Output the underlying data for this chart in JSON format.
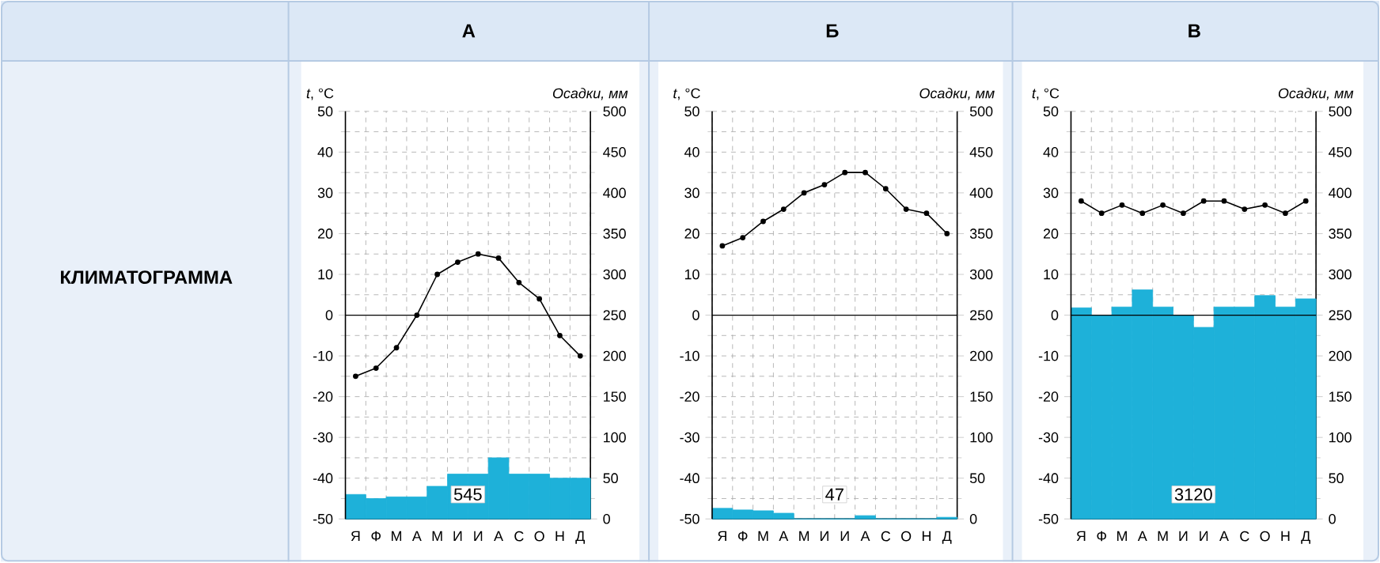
{
  "chart_data": [
    {
      "type": "other",
      "title": "КЛИМАТОГРАММА"
    },
    {
      "type": "bar",
      "title": "А",
      "categories": [
        "Я",
        "Ф",
        "М",
        "А",
        "М",
        "И",
        "И",
        "А",
        "С",
        "О",
        "Н",
        "Д"
      ],
      "ylabel": "*t*, °C",
      "y2label": "Осадки, мм",
      "ylim": [
        -50,
        50
      ],
      "yticks": [
        -50,
        -40,
        -30,
        -20,
        -10,
        0,
        10,
        20,
        30,
        40,
        50
      ],
      "y2lim": [
        0,
        500
      ],
      "y2ticks": [
        0,
        50,
        100,
        150,
        200,
        250,
        300,
        350,
        400,
        450,
        500
      ],
      "grid": true,
      "marker": "circle",
      "ref_lines": [
        {
          "axis": "y",
          "value": 0
        }
      ],
      "annotations": [
        "545"
      ],
      "series": [
        {
          "type": "bar",
          "axis": "y2",
          "color": "#1eb1d9",
          "values": [
            30,
            25,
            27,
            27,
            40,
            55,
            55,
            75,
            55,
            55,
            50,
            50
          ]
        },
        {
          "type": "line",
          "color": "#000000",
          "values": [
            -15,
            -13,
            -8,
            0,
            10,
            13,
            15,
            14,
            8,
            4,
            -5,
            -10
          ]
        }
      ]
    },
    {
      "type": "bar",
      "title": "Б",
      "categories": [
        "Я",
        "Ф",
        "М",
        "А",
        "М",
        "И",
        "И",
        "А",
        "С",
        "О",
        "Н",
        "Д"
      ],
      "ylabel": "*t*, °C",
      "y2label": "Осадки, мм",
      "ylim": [
        -50,
        50
      ],
      "yticks": [
        -50,
        -40,
        -30,
        -20,
        -10,
        0,
        10,
        20,
        30,
        40,
        50
      ],
      "y2lim": [
        0,
        500
      ],
      "y2ticks": [
        0,
        50,
        100,
        150,
        200,
        250,
        300,
        350,
        400,
        450,
        500
      ],
      "grid": true,
      "marker": "circle",
      "ref_lines": [
        {
          "axis": "y",
          "value": 0
        }
      ],
      "annotations": [
        "47"
      ],
      "series": [
        {
          "type": "bar",
          "axis": "y2",
          "color": "#1eb1d9",
          "values": [
            13,
            11,
            10,
            7,
            0,
            0,
            0,
            4,
            0,
            0,
            0,
            2
          ]
        },
        {
          "type": "line",
          "color": "#000000",
          "values": [
            17,
            19,
            23,
            26,
            30,
            32,
            35,
            35,
            31,
            26,
            25,
            20
          ]
        }
      ]
    },
    {
      "type": "bar",
      "title": "В",
      "categories": [
        "Я",
        "Ф",
        "М",
        "А",
        "М",
        "И",
        "И",
        "А",
        "С",
        "О",
        "Н",
        "Д"
      ],
      "ylabel": "*t*, °C",
      "y2label": "Осадки, мм",
      "ylim": [
        -50,
        50
      ],
      "yticks": [
        -50,
        -40,
        -30,
        -20,
        -10,
        0,
        10,
        20,
        30,
        40,
        50
      ],
      "y2lim": [
        0,
        500
      ],
      "y2ticks": [
        0,
        50,
        100,
        150,
        200,
        250,
        300,
        350,
        400,
        450,
        500
      ],
      "grid": true,
      "marker": "circle",
      "ref_lines": [
        {
          "axis": "y",
          "value": 0
        }
      ],
      "annotations": [
        "3120"
      ],
      "series": [
        {
          "type": "bar",
          "axis": "y2",
          "color": "#1eb1d9",
          "values": [
            259,
            250,
            260,
            281,
            260,
            250,
            235,
            260,
            260,
            274,
            260,
            270
          ]
        },
        {
          "type": "line",
          "color": "#000000",
          "values": [
            28,
            25,
            27,
            25,
            27,
            25,
            28,
            28,
            26,
            27,
            25,
            28
          ]
        }
      ]
    }
  ]
}
